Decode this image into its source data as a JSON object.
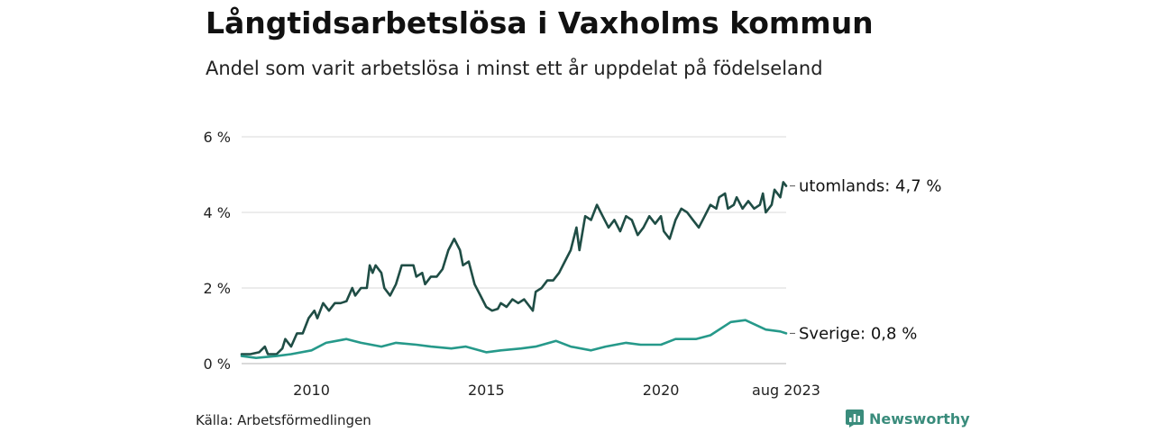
{
  "title": "Långtidsarbetslösa i Vaxholms kommun",
  "subtitle": "Andel som varit arbetslösa i minst ett år uppdelat på födelseland",
  "source": "Källa: Arbetsförmedlingen",
  "brand": {
    "name": "Newsworthy",
    "icon": "newsworthy-logo-icon",
    "color": "#3a8c7c"
  },
  "chart_data": {
    "type": "line",
    "title": "Långtidsarbetslösa i Vaxholms kommun",
    "subtitle": "Andel som varit arbetslösa i minst ett år uppdelat på födelseland",
    "x_axis": {
      "type": "time",
      "range": [
        "2008-01",
        "2023-08"
      ],
      "ticks": [
        "2010",
        "2015",
        "2020",
        "aug 2023"
      ]
    },
    "y_axis": {
      "range": [
        0,
        7
      ],
      "ticks": [
        0,
        2,
        4,
        6
      ],
      "tick_labels": [
        "0 %",
        "2 %",
        "4 %",
        "6 %"
      ],
      "unit": "%"
    },
    "grid": "horizontal",
    "series": [
      {
        "name": "utomlands",
        "end_label": "utomlands: 4,7 %",
        "color": "#1f4d45",
        "points": [
          [
            "2008-01",
            0.25
          ],
          [
            "2008-04",
            0.25
          ],
          [
            "2008-07",
            0.3
          ],
          [
            "2008-09",
            0.45
          ],
          [
            "2008-10",
            0.25
          ],
          [
            "2009-01",
            0.25
          ],
          [
            "2009-03",
            0.4
          ],
          [
            "2009-04",
            0.65
          ],
          [
            "2009-06",
            0.45
          ],
          [
            "2009-08",
            0.8
          ],
          [
            "2009-10",
            0.8
          ],
          [
            "2009-12",
            1.2
          ],
          [
            "2010-02",
            1.4
          ],
          [
            "2010-03",
            1.2
          ],
          [
            "2010-05",
            1.6
          ],
          [
            "2010-07",
            1.4
          ],
          [
            "2010-09",
            1.6
          ],
          [
            "2010-11",
            1.6
          ],
          [
            "2011-01",
            1.65
          ],
          [
            "2011-03",
            2.0
          ],
          [
            "2011-04",
            1.8
          ],
          [
            "2011-06",
            2.0
          ],
          [
            "2011-08",
            2.0
          ],
          [
            "2011-09",
            2.6
          ],
          [
            "2011-10",
            2.4
          ],
          [
            "2011-11",
            2.6
          ],
          [
            "2012-01",
            2.4
          ],
          [
            "2012-02",
            2.0
          ],
          [
            "2012-04",
            1.8
          ],
          [
            "2012-06",
            2.1
          ],
          [
            "2012-08",
            2.6
          ],
          [
            "2012-10",
            2.6
          ],
          [
            "2012-12",
            2.6
          ],
          [
            "2013-01",
            2.3
          ],
          [
            "2013-03",
            2.4
          ],
          [
            "2013-04",
            2.1
          ],
          [
            "2013-06",
            2.3
          ],
          [
            "2013-08",
            2.3
          ],
          [
            "2013-10",
            2.5
          ],
          [
            "2013-12",
            3.0
          ],
          [
            "2014-02",
            3.3
          ],
          [
            "2014-04",
            3.0
          ],
          [
            "2014-05",
            2.6
          ],
          [
            "2014-07",
            2.7
          ],
          [
            "2014-09",
            2.1
          ],
          [
            "2014-11",
            1.8
          ],
          [
            "2015-01",
            1.5
          ],
          [
            "2015-03",
            1.4
          ],
          [
            "2015-05",
            1.45
          ],
          [
            "2015-06",
            1.6
          ],
          [
            "2015-08",
            1.5
          ],
          [
            "2015-10",
            1.7
          ],
          [
            "2015-12",
            1.6
          ],
          [
            "2016-02",
            1.7
          ],
          [
            "2016-04",
            1.5
          ],
          [
            "2016-05",
            1.4
          ],
          [
            "2016-06",
            1.9
          ],
          [
            "2016-08",
            2.0
          ],
          [
            "2016-10",
            2.2
          ],
          [
            "2016-12",
            2.2
          ],
          [
            "2017-02",
            2.4
          ],
          [
            "2017-04",
            2.7
          ],
          [
            "2017-06",
            3.0
          ],
          [
            "2017-08",
            3.6
          ],
          [
            "2017-09",
            3.0
          ],
          [
            "2017-11",
            3.9
          ],
          [
            "2018-01",
            3.8
          ],
          [
            "2018-03",
            4.2
          ],
          [
            "2018-05",
            3.9
          ],
          [
            "2018-07",
            3.6
          ],
          [
            "2018-09",
            3.8
          ],
          [
            "2018-11",
            3.5
          ],
          [
            "2019-01",
            3.9
          ],
          [
            "2019-03",
            3.8
          ],
          [
            "2019-05",
            3.4
          ],
          [
            "2019-07",
            3.6
          ],
          [
            "2019-09",
            3.9
          ],
          [
            "2019-11",
            3.7
          ],
          [
            "2020-01",
            3.9
          ],
          [
            "2020-02",
            3.5
          ],
          [
            "2020-04",
            3.3
          ],
          [
            "2020-06",
            3.8
          ],
          [
            "2020-08",
            4.1
          ],
          [
            "2020-10",
            4.0
          ],
          [
            "2020-12",
            3.8
          ],
          [
            "2021-02",
            3.6
          ],
          [
            "2021-04",
            3.9
          ],
          [
            "2021-06",
            4.2
          ],
          [
            "2021-08",
            4.1
          ],
          [
            "2021-09",
            4.4
          ],
          [
            "2021-11",
            4.5
          ],
          [
            "2021-12",
            4.1
          ],
          [
            "2022-02",
            4.2
          ],
          [
            "2022-03",
            4.4
          ],
          [
            "2022-05",
            4.1
          ],
          [
            "2022-07",
            4.3
          ],
          [
            "2022-09",
            4.1
          ],
          [
            "2022-11",
            4.2
          ],
          [
            "2022-12",
            4.5
          ],
          [
            "2023-01",
            4.0
          ],
          [
            "2023-03",
            4.2
          ],
          [
            "2023-04",
            4.6
          ],
          [
            "2023-06",
            4.4
          ],
          [
            "2023-07",
            4.8
          ],
          [
            "2023-08",
            4.7
          ]
        ]
      },
      {
        "name": "Sverige",
        "end_label": "Sverige: 0,8 %",
        "color": "#26998a",
        "points": [
          [
            "2008-01",
            0.2
          ],
          [
            "2008-06",
            0.15
          ],
          [
            "2009-01",
            0.2
          ],
          [
            "2009-06",
            0.25
          ],
          [
            "2010-01",
            0.35
          ],
          [
            "2010-06",
            0.55
          ],
          [
            "2011-01",
            0.65
          ],
          [
            "2011-06",
            0.55
          ],
          [
            "2012-01",
            0.45
          ],
          [
            "2012-06",
            0.55
          ],
          [
            "2013-01",
            0.5
          ],
          [
            "2013-06",
            0.45
          ],
          [
            "2014-01",
            0.4
          ],
          [
            "2014-06",
            0.45
          ],
          [
            "2015-01",
            0.3
          ],
          [
            "2015-06",
            0.35
          ],
          [
            "2016-01",
            0.4
          ],
          [
            "2016-06",
            0.45
          ],
          [
            "2017-01",
            0.6
          ],
          [
            "2017-06",
            0.45
          ],
          [
            "2018-01",
            0.35
          ],
          [
            "2018-06",
            0.45
          ],
          [
            "2019-01",
            0.55
          ],
          [
            "2019-06",
            0.5
          ],
          [
            "2020-01",
            0.5
          ],
          [
            "2020-06",
            0.65
          ],
          [
            "2021-01",
            0.65
          ],
          [
            "2021-06",
            0.75
          ],
          [
            "2022-01",
            1.1
          ],
          [
            "2022-06",
            1.15
          ],
          [
            "2023-01",
            0.9
          ],
          [
            "2023-06",
            0.85
          ],
          [
            "2023-08",
            0.8
          ]
        ]
      }
    ]
  }
}
